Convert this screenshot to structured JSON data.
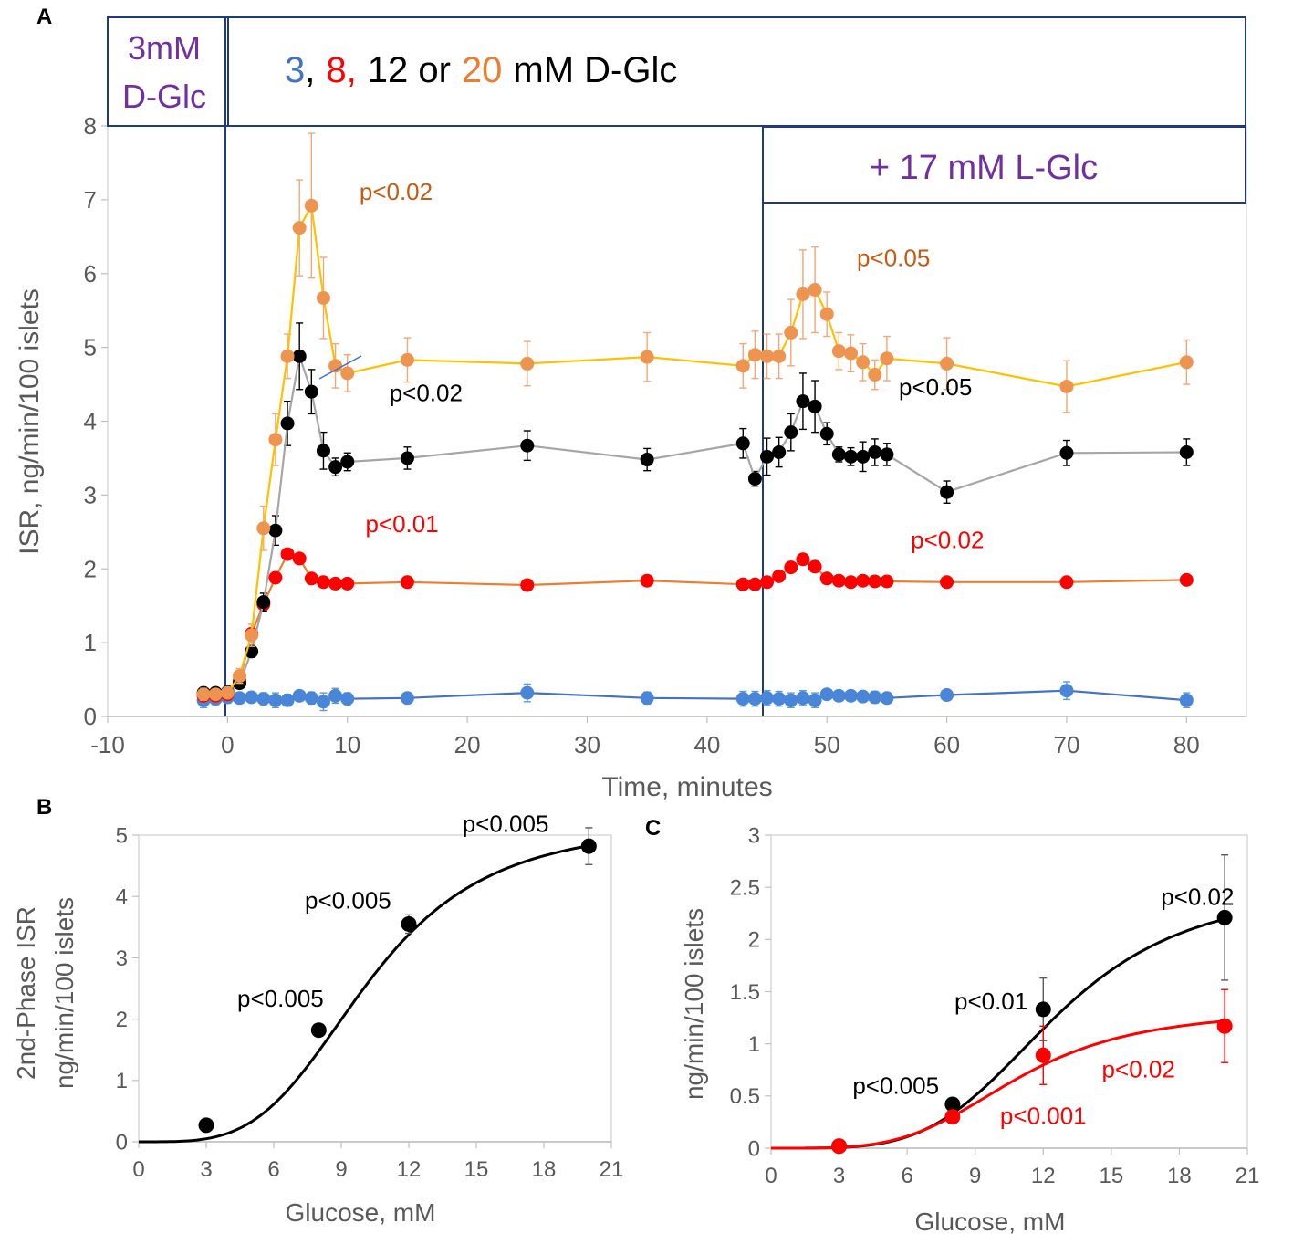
{
  "chart_data": [
    {
      "panel": "A",
      "type": "line",
      "xlabel": "Time, minutes",
      "ylabel": "ISR, ng/min/100 islets",
      "xlim": [
        -10,
        85
      ],
      "ylim": [
        0,
        8
      ],
      "xticks": [
        -10,
        0,
        10,
        20,
        30,
        40,
        50,
        60,
        70,
        80
      ],
      "yticks": [
        0,
        1,
        2,
        3,
        4,
        5,
        6,
        7,
        8
      ],
      "box_left": {
        "line1": "3mM",
        "line2": "D-Glc"
      },
      "box_top": {
        "part1": "3",
        "sep1": ",",
        "part2": "8,",
        "part3": "12 or",
        "part4": "20",
        "part5": "mM D-Glc"
      },
      "box_right": {
        "text": "+ 17 mM L-Glc"
      },
      "series": [
        {
          "name": "20 mM",
          "line_color": "#FFC000",
          "marker_color": "#ED9450",
          "err_color": "#F0A878",
          "x": [
            -2,
            -1,
            0,
            1,
            2,
            3,
            4,
            5,
            6,
            7,
            8,
            9,
            10,
            15,
            25,
            35,
            43,
            44,
            45,
            46,
            47,
            48,
            49,
            50,
            51,
            52,
            53,
            54,
            55,
            60,
            70,
            80
          ],
          "y": [
            0.3,
            0.3,
            0.32,
            0.55,
            1.1,
            2.55,
            3.75,
            4.88,
            6.62,
            6.92,
            5.67,
            4.75,
            4.65,
            4.83,
            4.78,
            4.87,
            4.75,
            4.9,
            4.88,
            4.88,
            5.2,
            5.72,
            5.78,
            5.45,
            4.95,
            4.92,
            4.8,
            4.63,
            4.85,
            4.78,
            4.47,
            4.8
          ],
          "err": [
            0.08,
            0.06,
            0.06,
            0.1,
            0.15,
            0.3,
            0.35,
            0.3,
            0.65,
            0.98,
            0.55,
            0.3,
            0.25,
            0.3,
            0.3,
            0.33,
            0.3,
            0.32,
            0.3,
            0.3,
            0.45,
            0.6,
            0.58,
            0.3,
            0.25,
            0.25,
            0.25,
            0.2,
            0.3,
            0.35,
            0.35,
            0.3
          ]
        },
        {
          "name": "12 mM",
          "line_color": "#A6A6A6",
          "marker_color": "#000000",
          "err_color": "#000000",
          "x": [
            -2,
            -1,
            0,
            1,
            2,
            3,
            4,
            5,
            6,
            7,
            8,
            9,
            10,
            15,
            25,
            35,
            43,
            44,
            45,
            46,
            47,
            48,
            49,
            50,
            51,
            52,
            53,
            54,
            55,
            60,
            70,
            80
          ],
          "y": [
            0.32,
            0.32,
            0.33,
            0.45,
            0.88,
            1.55,
            2.52,
            3.97,
            4.88,
            4.4,
            3.6,
            3.38,
            3.45,
            3.5,
            3.67,
            3.48,
            3.7,
            3.22,
            3.52,
            3.58,
            3.85,
            4.27,
            4.2,
            3.83,
            3.55,
            3.52,
            3.52,
            3.58,
            3.55,
            3.04,
            3.57,
            3.58
          ],
          "err": [
            0.05,
            0.05,
            0.05,
            0.06,
            0.08,
            0.12,
            0.2,
            0.3,
            0.45,
            0.3,
            0.25,
            0.12,
            0.12,
            0.15,
            0.2,
            0.15,
            0.2,
            0.1,
            0.25,
            0.2,
            0.25,
            0.38,
            0.35,
            0.15,
            0.1,
            0.12,
            0.2,
            0.18,
            0.15,
            0.15,
            0.17,
            0.18
          ]
        },
        {
          "name": "8 mM",
          "line_color": "#ED7D31",
          "marker_color": "#FF0000",
          "err_color": "#FF6A6A",
          "x": [
            -2,
            -1,
            0,
            1,
            2,
            3,
            4,
            5,
            6,
            7,
            8,
            9,
            10,
            15,
            25,
            35,
            43,
            44,
            45,
            46,
            47,
            48,
            49,
            50,
            51,
            52,
            53,
            54,
            55,
            60,
            70,
            80
          ],
          "y": [
            0.28,
            0.28,
            0.3,
            0.48,
            1.12,
            1.52,
            1.88,
            2.2,
            2.14,
            1.87,
            1.82,
            1.8,
            1.8,
            1.82,
            1.78,
            1.84,
            1.79,
            1.79,
            1.82,
            1.9,
            2.02,
            2.13,
            2.03,
            1.87,
            1.84,
            1.82,
            1.84,
            1.83,
            1.83,
            1.82,
            1.82,
            1.85
          ]
        },
        {
          "name": "3 mM",
          "line_color": "#4472C4",
          "marker_color": "#4A86D8",
          "err_color": "#5B9BD5",
          "x": [
            -2,
            -1,
            0,
            1,
            2,
            3,
            4,
            5,
            6,
            7,
            8,
            9,
            10,
            15,
            25,
            35,
            43,
            44,
            45,
            46,
            47,
            48,
            49,
            50,
            51,
            52,
            53,
            54,
            55,
            60,
            70,
            80
          ],
          "y": [
            0.22,
            0.24,
            0.26,
            0.25,
            0.26,
            0.24,
            0.22,
            0.22,
            0.28,
            0.25,
            0.2,
            0.28,
            0.24,
            0.25,
            0.32,
            0.25,
            0.24,
            0.24,
            0.25,
            0.24,
            0.22,
            0.25,
            0.22,
            0.3,
            0.28,
            0.28,
            0.27,
            0.26,
            0.25,
            0.29,
            0.35,
            0.22
          ],
          "err": [
            0.1,
            0.08,
            0.08,
            0.06,
            0.06,
            0.08,
            0.1,
            0.08,
            0.06,
            0.08,
            0.12,
            0.1,
            0.08,
            0.06,
            0.12,
            0.08,
            0.1,
            0.1,
            0.1,
            0.1,
            0.1,
            0.1,
            0.1,
            0.06,
            0.06,
            0.06,
            0.06,
            0.08,
            0.06,
            0.06,
            0.12,
            0.1
          ]
        }
      ],
      "annotations": [
        {
          "text": "p<0.02",
          "x": 11,
          "y": 7.0,
          "color": "#C55A11"
        },
        {
          "text": "p<0.05",
          "x": 52.5,
          "y": 6.1,
          "color": "#C55A11"
        },
        {
          "text": "p<0.02",
          "x": 13.5,
          "y": 4.27,
          "color": "#000000"
        },
        {
          "text": "p<0.05",
          "x": 56,
          "y": 4.35,
          "color": "#000000"
        },
        {
          "text": "p<0.01",
          "x": 11.5,
          "y": 2.5,
          "color": "#FF0000"
        },
        {
          "text": "p<0.02",
          "x": 57,
          "y": 2.28,
          "color": "#FF0000"
        }
      ]
    },
    {
      "panel": "B",
      "type": "scatter",
      "xlabel": "Glucose, mM",
      "ylabel_line1": "2nd-Phase ISR",
      "ylabel_line2": "ng/min/100 islets",
      "xlim": [
        0,
        21
      ],
      "ylim": [
        0,
        5
      ],
      "xticks": [
        0,
        3,
        6,
        9,
        12,
        15,
        18,
        21
      ],
      "yticks": [
        0,
        1,
        2,
        3,
        4,
        5
      ],
      "points": [
        {
          "x": 3,
          "y": 0.27,
          "err": 0.08
        },
        {
          "x": 8,
          "y": 1.82,
          "err": 0.08
        },
        {
          "x": 12,
          "y": 3.55,
          "err": 0.15
        },
        {
          "x": 20,
          "y": 4.82,
          "err": 0.3
        }
      ],
      "fit": {
        "vmax": 5.2,
        "k": 10.2,
        "n": 3.8
      },
      "annotations": [
        {
          "text": "p<0.005",
          "x": 6.3,
          "y": 2.2
        },
        {
          "text": "p<0.005",
          "x": 9.3,
          "y": 3.8
        },
        {
          "text": "p<0.005",
          "x": 16.3,
          "y": 5.05
        }
      ]
    },
    {
      "panel": "C",
      "type": "scatter",
      "xlabel": "Glucose, mM",
      "ylabel": "ng/min/100 islets",
      "xlim": [
        0,
        21
      ],
      "ylim": [
        0,
        3
      ],
      "xticks": [
        0,
        3,
        6,
        9,
        12,
        15,
        18,
        21
      ],
      "yticks": [
        0,
        0.5,
        1,
        1.5,
        2,
        2.5,
        3
      ],
      "yticklabels": [
        "0",
        "0.5",
        "1",
        "1.5",
        "2",
        "2.5",
        "3"
      ],
      "series": [
        {
          "name": "black",
          "color": "#000000",
          "points": [
            {
              "x": 3,
              "y": 0.02,
              "err": 0.02
            },
            {
              "x": 8,
              "y": 0.42,
              "err": 0.05
            },
            {
              "x": 12,
              "y": 1.33,
              "err": 0.3
            },
            {
              "x": 20,
              "y": 2.21,
              "err": 0.6
            }
          ],
          "fit": {
            "vmax": 2.5,
            "k": 12.5,
            "n": 4.2
          }
        },
        {
          "name": "red",
          "color": "#FF0000",
          "points": [
            {
              "x": 3,
              "y": 0.02,
              "err": 0.02
            },
            {
              "x": 8,
              "y": 0.3,
              "err": 0.05
            },
            {
              "x": 12,
              "y": 0.89,
              "err": 0.28
            },
            {
              "x": 20,
              "y": 1.17,
              "err": 0.35
            }
          ],
          "fit": {
            "vmax": 1.32,
            "k": 10.8,
            "n": 4.0
          }
        }
      ],
      "annotations": [
        {
          "text": "p<0.005",
          "x": 5.5,
          "y": 0.52,
          "color": "#000000"
        },
        {
          "text": "p<0.01",
          "x": 9.7,
          "y": 1.33,
          "color": "#000000"
        },
        {
          "text": "p<0.02",
          "x": 18.8,
          "y": 2.33,
          "color": "#000000"
        },
        {
          "text": "p<0.02",
          "x": 16.2,
          "y": 0.68,
          "color": "#FF0000"
        },
        {
          "text": "p<0.001",
          "x": 12.0,
          "y": 0.23,
          "color": "#FF0000"
        }
      ]
    }
  ],
  "panel_labels": {
    "a": "A",
    "b": "B",
    "c": "C"
  }
}
